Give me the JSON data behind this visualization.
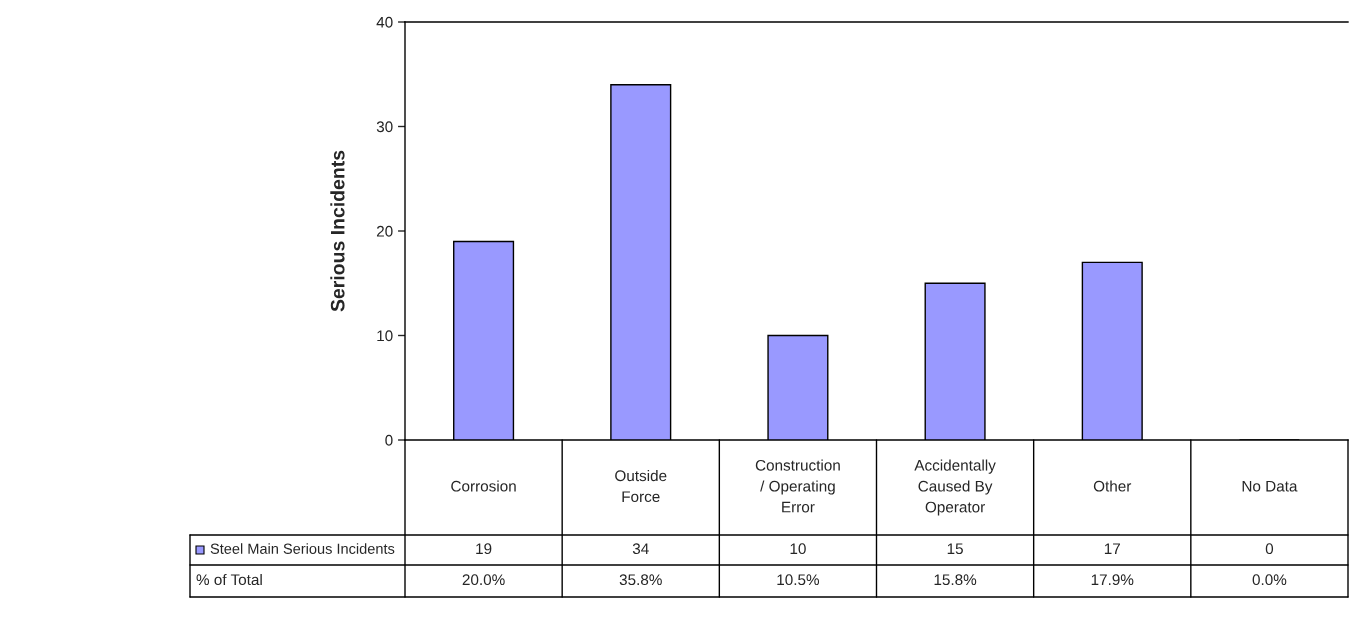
{
  "chart_data": {
    "type": "bar",
    "ylabel": "Serious Incidents",
    "categories": [
      "Corrosion",
      "Outside Force",
      "Construction / Operating Error",
      "Accidentally Caused By Operator",
      "Other",
      "No Data"
    ],
    "series": [
      {
        "name": "Steel Main Serious Incidents",
        "color": "#9999ff",
        "values": [
          19,
          34,
          10,
          15,
          17,
          0
        ]
      }
    ],
    "data_labels": true,
    "ylim": [
      0,
      40
    ],
    "yticks": [
      0,
      10,
      20,
      30,
      40
    ],
    "grid": false,
    "annotations": [
      "% of Total",
      "20.0%",
      "35.8%",
      "10.5%",
      "15.8%",
      "17.9%",
      "0.0%"
    ]
  }
}
